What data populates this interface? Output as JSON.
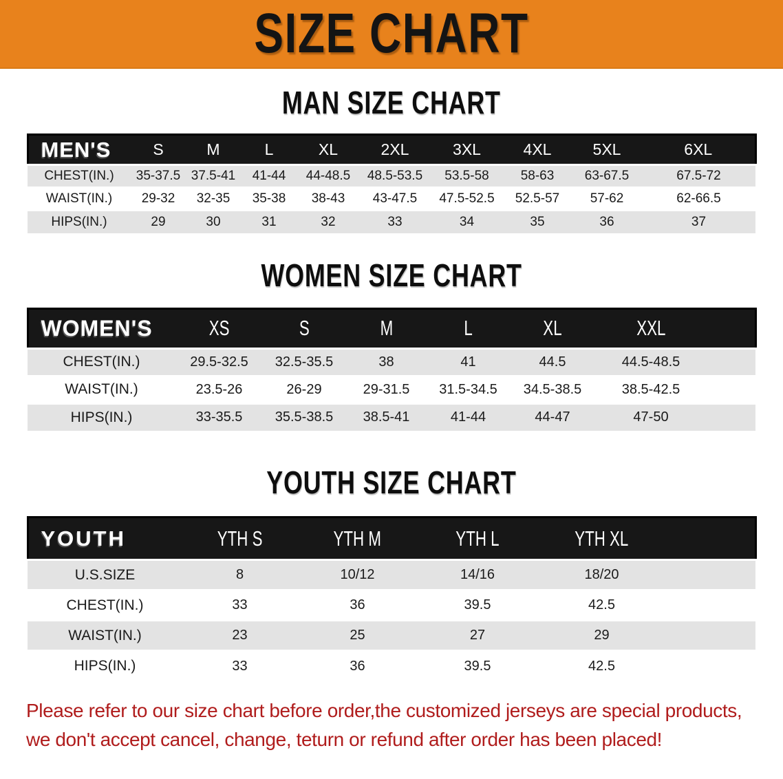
{
  "banner": {
    "title": "SIZE CHART"
  },
  "sections": [
    {
      "id": "men",
      "heading": "MAN SIZE CHART",
      "header_label": "MEN'S",
      "columns": [
        "S",
        "M",
        "L",
        "XL",
        "2XL",
        "3XL",
        "4XL",
        "5XL",
        "6XL"
      ],
      "rows": [
        {
          "label": "CHEST(IN.)",
          "values": [
            "35-37.5",
            "37.5-41",
            "41-44",
            "44-48.5",
            "48.5-53.5",
            "53.5-58",
            "58-63",
            "63-67.5",
            "67.5-72"
          ]
        },
        {
          "label": "WAIST(IN.)",
          "values": [
            "29-32",
            "32-35",
            "35-38",
            "38-43",
            "43-47.5",
            "47.5-52.5",
            "52.5-57",
            "57-62",
            "62-66.5"
          ]
        },
        {
          "label": "HIPS(IN.)",
          "values": [
            "29",
            "30",
            "31",
            "32",
            "33",
            "34",
            "35",
            "36",
            "37"
          ]
        }
      ]
    },
    {
      "id": "women",
      "heading": "WOMEN SIZE CHART",
      "header_label": "WOMEN'S",
      "columns": [
        "XS",
        "S",
        "M",
        "L",
        "XL",
        "XXL"
      ],
      "rows": [
        {
          "label": "CHEST(IN.)",
          "values": [
            "29.5-32.5",
            "32.5-35.5",
            "38",
            "41",
            "44.5",
            "44.5-48.5"
          ]
        },
        {
          "label": "WAIST(IN.)",
          "values": [
            "23.5-26",
            "26-29",
            "29-31.5",
            "31.5-34.5",
            "34.5-38.5",
            "38.5-42.5"
          ]
        },
        {
          "label": "HIPS(IN.)",
          "values": [
            "33-35.5",
            "35.5-38.5",
            "38.5-41",
            "41-44",
            "44-47",
            "47-50"
          ]
        }
      ]
    },
    {
      "id": "youth",
      "heading": "YOUTH SIZE CHART",
      "header_label": "YOUTH",
      "columns": [
        "YTH S",
        "YTH M",
        "YTH L",
        "YTH XL"
      ],
      "rows": [
        {
          "label": "U.S.SIZE",
          "values": [
            "8",
            "10/12",
            "14/16",
            "18/20"
          ]
        },
        {
          "label": "CHEST(IN.)",
          "values": [
            "33",
            "36",
            "39.5",
            "42.5"
          ]
        },
        {
          "label": "WAIST(IN.)",
          "values": [
            "23",
            "25",
            "27",
            "29"
          ]
        },
        {
          "label": "HIPS(IN.)",
          "values": [
            "33",
            "36",
            "39.5",
            "42.5"
          ]
        }
      ]
    }
  ],
  "footer": {
    "lines": [
      "Please refer to our size chart before order,the customized jerseys are special products,",
      "we don't accept cancel, change, teturn or refund after order has been placed!"
    ]
  },
  "colors": {
    "banner_bg": "#e8821c",
    "table_header_bg": "#171717",
    "row_alt_bg": "#e3e3e3",
    "notice_text": "#b01c1c",
    "title_text": "#141414"
  }
}
